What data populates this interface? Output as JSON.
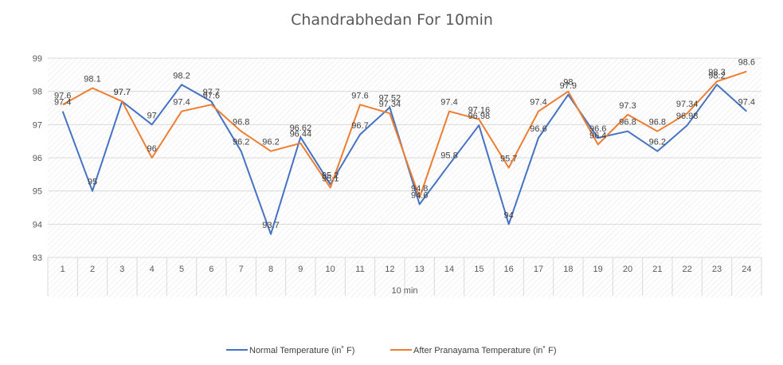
{
  "chart_data": {
    "type": "line",
    "title": "Chandrabhedan For 10min",
    "xlabel": "10 min",
    "ylabel": "",
    "ylim": [
      93,
      99
    ],
    "yticks": [
      "93",
      "94",
      "95",
      "96",
      "97",
      "98",
      "99"
    ],
    "categories": [
      "1",
      "2",
      "3",
      "4",
      "5",
      "6",
      "7",
      "8",
      "9",
      "10",
      "11",
      "12",
      "13",
      "14",
      "15",
      "16",
      "17",
      "18",
      "19",
      "20",
      "21",
      "22",
      "23",
      "24"
    ],
    "series": [
      {
        "name": "Normal Temperature  (in˚ F)",
        "color": "#4472C4",
        "values": [
          97.4,
          95,
          97.7,
          97,
          98.2,
          97.7,
          96.2,
          93.7,
          96.62,
          95.2,
          96.7,
          97.52,
          94.6,
          95.8,
          96.98,
          94,
          96.6,
          97.9,
          96.6,
          96.8,
          96.2,
          96.98,
          98.2,
          97.4
        ],
        "labels": [
          "97.4",
          "95",
          "97.7",
          "97",
          "98.2",
          "97.7",
          "96.2",
          "93.7",
          "96.62",
          "95.2",
          "96.7",
          "97.52",
          "94.6",
          "95.8",
          "96.98",
          "94",
          "96.6",
          "97.9",
          "96.6",
          "96.8",
          "96.2",
          "96.98",
          "98.2",
          "97.4"
        ]
      },
      {
        "name": "After Pranayama Temperature (in˚ F)",
        "color": "#ED7D31",
        "values": [
          97.6,
          98.1,
          97.7,
          96,
          97.4,
          97.6,
          96.8,
          96.2,
          96.44,
          95.1,
          97.6,
          97.34,
          94.8,
          97.4,
          97.16,
          95.7,
          97.4,
          98,
          96.4,
          97.3,
          96.8,
          97.34,
          98.3,
          98.6
        ],
        "labels": [
          "97.6",
          "98.1",
          "97.7",
          "96",
          "97.4",
          "97.6",
          "96.8",
          "96.2",
          "96.44",
          "95.1",
          "97.6",
          "97.34",
          "94.8",
          "97.4",
          "97.16",
          "95.7",
          "97.4",
          "98",
          "96.4",
          "97.3",
          "96.8",
          "97.34",
          "98.3",
          "98.6"
        ]
      }
    ],
    "grid": true,
    "legend_position": "bottom"
  }
}
